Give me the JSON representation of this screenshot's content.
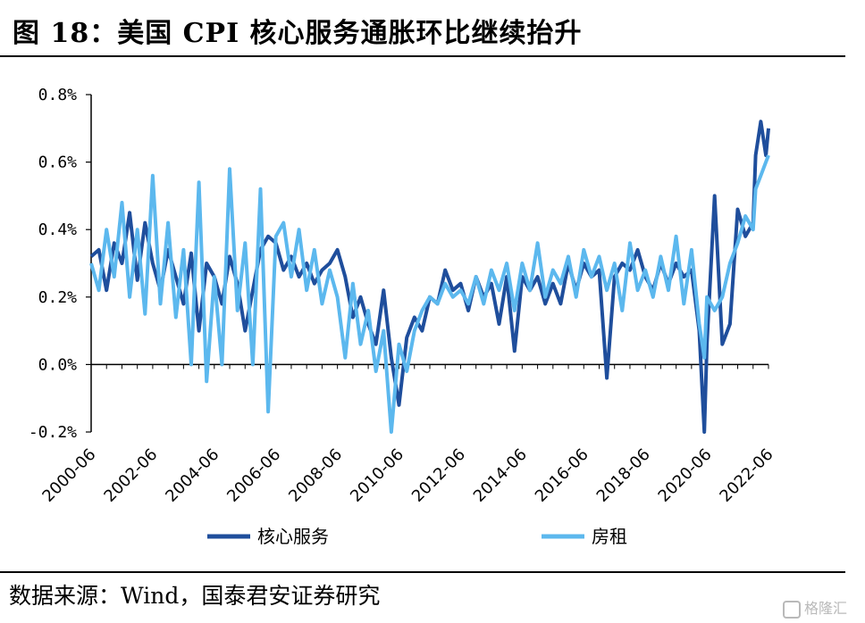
{
  "title": "图 18：美国 CPI 核心服务通胀环比继续抬升",
  "source": "数据来源：Wind，国泰君安证券研究",
  "watermark": "格隆汇",
  "colors": {
    "core": "#1f4e9c",
    "rent": "#5cb8ee",
    "axis": "#000000"
  },
  "chart_data": {
    "type": "line",
    "title": "",
    "xlabel": "",
    "ylabel": "",
    "ylim": [
      -0.2,
      0.8
    ],
    "yticks": [
      "-0.2%",
      "0.0%",
      "0.2%",
      "0.4%",
      "0.6%",
      "0.8%"
    ],
    "yticks_values": [
      -0.2,
      0.0,
      0.2,
      0.4,
      0.6,
      0.8
    ],
    "x_start": "2000-06",
    "x_end": "2022-06",
    "xticks": [
      "2000-06",
      "2002-06",
      "2004-06",
      "2006-06",
      "2008-06",
      "2010-06",
      "2012-06",
      "2014-06",
      "2016-06",
      "2018-06",
      "2020-06",
      "2022-06"
    ],
    "legend_position": "bottom",
    "grid": false,
    "series": [
      {
        "name": "核心服务",
        "color": "#1f4e9c",
        "points": [
          [
            "2000-06",
            0.32
          ],
          [
            "2000-09",
            0.34
          ],
          [
            "2000-12",
            0.22
          ],
          [
            "2001-03",
            0.36
          ],
          [
            "2001-06",
            0.3
          ],
          [
            "2001-09",
            0.45
          ],
          [
            "2001-12",
            0.25
          ],
          [
            "2002-03",
            0.42
          ],
          [
            "2002-06",
            0.3
          ],
          [
            "2002-09",
            0.22
          ],
          [
            "2002-12",
            0.34
          ],
          [
            "2003-03",
            0.26
          ],
          [
            "2003-06",
            0.18
          ],
          [
            "2003-09",
            0.33
          ],
          [
            "2003-12",
            0.1
          ],
          [
            "2004-03",
            0.3
          ],
          [
            "2004-06",
            0.26
          ],
          [
            "2004-09",
            0.18
          ],
          [
            "2004-12",
            0.32
          ],
          [
            "2005-03",
            0.24
          ],
          [
            "2005-06",
            0.1
          ],
          [
            "2005-09",
            0.22
          ],
          [
            "2005-12",
            0.34
          ],
          [
            "2006-03",
            0.38
          ],
          [
            "2006-06",
            0.36
          ],
          [
            "2006-09",
            0.28
          ],
          [
            "2006-12",
            0.32
          ],
          [
            "2007-03",
            0.26
          ],
          [
            "2007-06",
            0.3
          ],
          [
            "2007-09",
            0.24
          ],
          [
            "2007-12",
            0.28
          ],
          [
            "2008-03",
            0.3
          ],
          [
            "2008-06",
            0.34
          ],
          [
            "2008-09",
            0.26
          ],
          [
            "2008-12",
            0.14
          ],
          [
            "2009-03",
            0.2
          ],
          [
            "2009-06",
            0.12
          ],
          [
            "2009-09",
            0.06
          ],
          [
            "2009-12",
            0.22
          ],
          [
            "2010-03",
            0.02
          ],
          [
            "2010-06",
            -0.12
          ],
          [
            "2010-09",
            0.08
          ],
          [
            "2010-12",
            0.14
          ],
          [
            "2011-03",
            0.1
          ],
          [
            "2011-06",
            0.2
          ],
          [
            "2011-09",
            0.18
          ],
          [
            "2011-12",
            0.28
          ],
          [
            "2012-03",
            0.22
          ],
          [
            "2012-06",
            0.24
          ],
          [
            "2012-09",
            0.16
          ],
          [
            "2012-12",
            0.26
          ],
          [
            "2013-03",
            0.2
          ],
          [
            "2013-06",
            0.24
          ],
          [
            "2013-09",
            0.12
          ],
          [
            "2013-12",
            0.26
          ],
          [
            "2014-03",
            0.04
          ],
          [
            "2014-06",
            0.26
          ],
          [
            "2014-09",
            0.22
          ],
          [
            "2014-12",
            0.26
          ],
          [
            "2015-03",
            0.18
          ],
          [
            "2015-06",
            0.24
          ],
          [
            "2015-09",
            0.18
          ],
          [
            "2015-12",
            0.3
          ],
          [
            "2016-03",
            0.22
          ],
          [
            "2016-06",
            0.3
          ],
          [
            "2016-09",
            0.26
          ],
          [
            "2016-12",
            0.28
          ],
          [
            "2017-03",
            -0.04
          ],
          [
            "2017-06",
            0.26
          ],
          [
            "2017-09",
            0.3
          ],
          [
            "2017-12",
            0.28
          ],
          [
            "2018-03",
            0.34
          ],
          [
            "2018-06",
            0.26
          ],
          [
            "2018-09",
            0.22
          ],
          [
            "2018-12",
            0.3
          ],
          [
            "2019-03",
            0.24
          ],
          [
            "2019-06",
            0.3
          ],
          [
            "2019-09",
            0.26
          ],
          [
            "2019-12",
            0.28
          ],
          [
            "2020-03",
            0.1
          ],
          [
            "2020-05",
            -0.2
          ],
          [
            "2020-06",
            0.06
          ],
          [
            "2020-09",
            0.5
          ],
          [
            "2020-12",
            0.06
          ],
          [
            "2021-03",
            0.12
          ],
          [
            "2021-06",
            0.46
          ],
          [
            "2021-09",
            0.38
          ],
          [
            "2021-12",
            0.42
          ],
          [
            "2022-01",
            0.62
          ],
          [
            "2022-03",
            0.72
          ],
          [
            "2022-05",
            0.62
          ],
          [
            "2022-06",
            0.7
          ]
        ]
      },
      {
        "name": "房租",
        "color": "#5cb8ee",
        "points": [
          [
            "2000-06",
            0.3
          ],
          [
            "2000-09",
            0.22
          ],
          [
            "2000-12",
            0.4
          ],
          [
            "2001-03",
            0.26
          ],
          [
            "2001-06",
            0.48
          ],
          [
            "2001-09",
            0.2
          ],
          [
            "2001-12",
            0.4
          ],
          [
            "2002-03",
            0.15
          ],
          [
            "2002-06",
            0.56
          ],
          [
            "2002-09",
            0.18
          ],
          [
            "2002-12",
            0.42
          ],
          [
            "2003-03",
            0.14
          ],
          [
            "2003-06",
            0.34
          ],
          [
            "2003-09",
            0.0
          ],
          [
            "2003-12",
            0.54
          ],
          [
            "2004-03",
            -0.05
          ],
          [
            "2004-06",
            0.26
          ],
          [
            "2004-09",
            0.0
          ],
          [
            "2004-12",
            0.58
          ],
          [
            "2005-03",
            0.16
          ],
          [
            "2005-06",
            0.36
          ],
          [
            "2005-09",
            0.0
          ],
          [
            "2005-12",
            0.52
          ],
          [
            "2006-03",
            -0.14
          ],
          [
            "2006-06",
            0.38
          ],
          [
            "2006-09",
            0.42
          ],
          [
            "2006-12",
            0.26
          ],
          [
            "2007-03",
            0.4
          ],
          [
            "2007-06",
            0.22
          ],
          [
            "2007-09",
            0.34
          ],
          [
            "2007-12",
            0.18
          ],
          [
            "2008-03",
            0.28
          ],
          [
            "2008-06",
            0.2
          ],
          [
            "2008-09",
            0.02
          ],
          [
            "2008-12",
            0.24
          ],
          [
            "2009-03",
            0.06
          ],
          [
            "2009-06",
            0.16
          ],
          [
            "2009-09",
            -0.02
          ],
          [
            "2009-12",
            0.1
          ],
          [
            "2010-03",
            -0.2
          ],
          [
            "2010-06",
            0.06
          ],
          [
            "2010-09",
            -0.02
          ],
          [
            "2010-12",
            0.1
          ],
          [
            "2011-03",
            0.16
          ],
          [
            "2011-06",
            0.2
          ],
          [
            "2011-09",
            0.18
          ],
          [
            "2011-12",
            0.24
          ],
          [
            "2012-03",
            0.2
          ],
          [
            "2012-06",
            0.22
          ],
          [
            "2012-09",
            0.18
          ],
          [
            "2012-12",
            0.26
          ],
          [
            "2013-03",
            0.18
          ],
          [
            "2013-06",
            0.28
          ],
          [
            "2013-09",
            0.22
          ],
          [
            "2013-12",
            0.3
          ],
          [
            "2014-03",
            0.16
          ],
          [
            "2014-06",
            0.3
          ],
          [
            "2014-09",
            0.22
          ],
          [
            "2014-12",
            0.36
          ],
          [
            "2015-03",
            0.2
          ],
          [
            "2015-06",
            0.28
          ],
          [
            "2015-09",
            0.24
          ],
          [
            "2015-12",
            0.32
          ],
          [
            "2016-03",
            0.2
          ],
          [
            "2016-06",
            0.34
          ],
          [
            "2016-09",
            0.26
          ],
          [
            "2016-12",
            0.32
          ],
          [
            "2017-03",
            0.22
          ],
          [
            "2017-06",
            0.3
          ],
          [
            "2017-09",
            0.16
          ],
          [
            "2017-12",
            0.36
          ],
          [
            "2018-03",
            0.22
          ],
          [
            "2018-06",
            0.28
          ],
          [
            "2018-09",
            0.2
          ],
          [
            "2018-12",
            0.32
          ],
          [
            "2019-03",
            0.22
          ],
          [
            "2019-06",
            0.38
          ],
          [
            "2019-09",
            0.18
          ],
          [
            "2019-12",
            0.34
          ],
          [
            "2020-03",
            0.12
          ],
          [
            "2020-05",
            0.02
          ],
          [
            "2020-06",
            0.2
          ],
          [
            "2020-09",
            0.16
          ],
          [
            "2020-12",
            0.2
          ],
          [
            "2021-03",
            0.3
          ],
          [
            "2021-06",
            0.36
          ],
          [
            "2021-09",
            0.44
          ],
          [
            "2021-12",
            0.4
          ],
          [
            "2022-01",
            0.52
          ],
          [
            "2022-03",
            0.56
          ],
          [
            "2022-05",
            0.6
          ],
          [
            "2022-06",
            0.62
          ]
        ]
      }
    ]
  }
}
